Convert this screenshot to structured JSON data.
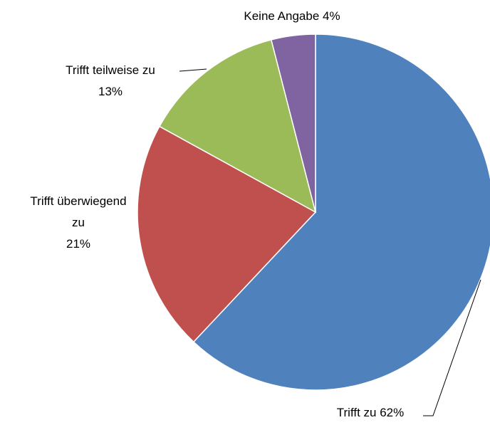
{
  "chart_data": {
    "type": "pie",
    "categories": [
      "Trifft zu",
      "Trifft überwiegend zu",
      "Trifft teilweise zu",
      "Keine Angabe"
    ],
    "values": [
      62,
      21,
      13,
      4
    ],
    "value_labels": [
      "62%",
      "21%",
      "13%",
      "4%"
    ],
    "colors": [
      "#4f81bd",
      "#c0504d",
      "#9bbb59",
      "#8064a2"
    ]
  }
}
